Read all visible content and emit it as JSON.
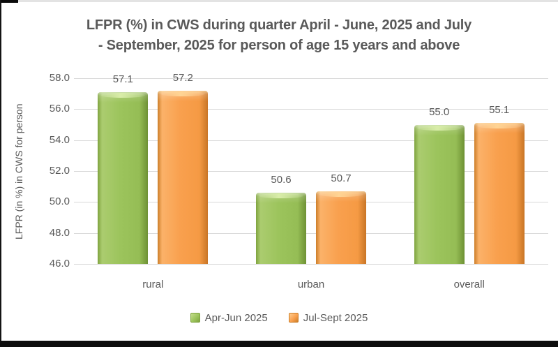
{
  "page": {
    "background": "#ffffff",
    "frame_accent_color": "#0d0d0d",
    "top_line_color": "#e3e3e3"
  },
  "title": {
    "line1": "LFPR (%) in CWS during quarter April - June, 2025 and July",
    "line2": "- September, 2025 for person of age 15 years and above"
  },
  "chart_data": {
    "type": "bar",
    "title": "LFPR (%) in CWS during quarter April - June, 2025 and July - September, 2025 for person of age 15 years and above",
    "categories": [
      "rural",
      "urban",
      "overall"
    ],
    "series": [
      {
        "name": "Apr-Jun 2025",
        "color": "#9cc45c",
        "values": [
          57.1,
          50.6,
          55.0
        ]
      },
      {
        "name": "Jul-Sept 2025",
        "color": "#f9a04e",
        "values": [
          57.2,
          50.7,
          55.1
        ]
      }
    ],
    "xlabel": "",
    "ylabel": "LFPR (in %) in CWS for person",
    "ylim": [
      46.0,
      58.0
    ],
    "ytick_step": 2.0,
    "ytick_values": [
      58,
      56,
      54,
      52,
      50,
      48,
      46
    ],
    "ytick_labels": [
      "58.0",
      "56.0",
      "54.0",
      "52.0",
      "50.0",
      "48.0",
      "46.0"
    ],
    "grid": true,
    "gridline_color": "#d9d9d9",
    "text_color": "#595959",
    "legend_position": "bottom",
    "data_labels_shown": true
  }
}
